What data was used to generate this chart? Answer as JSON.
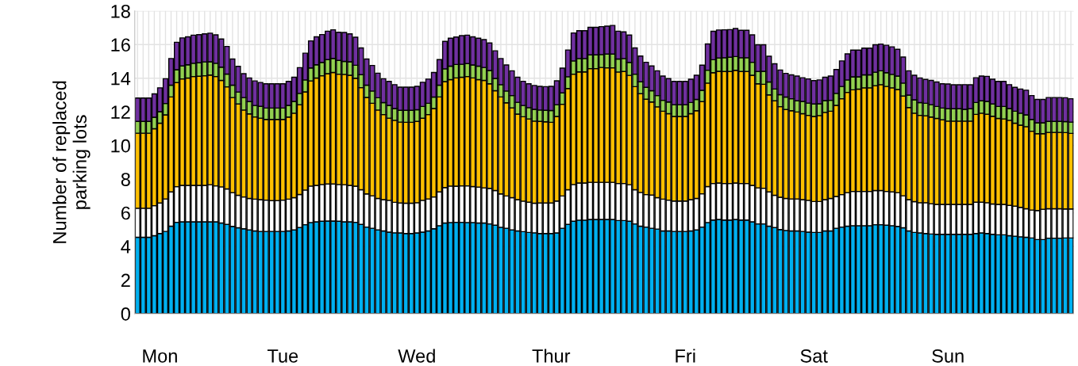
{
  "chart_data": {
    "type": "bar",
    "stacked": true,
    "ylabel": "Number of replaced\nparking lots",
    "categories": [
      null,
      null,
      null,
      null,
      "Mon",
      null,
      null,
      null,
      null,
      null,
      null,
      null,
      null,
      null,
      null,
      null,
      null,
      null,
      null,
      null,
      null,
      null,
      null,
      null,
      null,
      null,
      "Tue",
      null,
      null,
      null,
      null,
      null,
      null,
      null,
      null,
      null,
      null,
      null,
      null,
      null,
      null,
      null,
      null,
      null,
      null,
      null,
      null,
      null,
      null,
      null,
      "Wed",
      null,
      null,
      null,
      null,
      null,
      null,
      null,
      null,
      null,
      null,
      null,
      null,
      null,
      null,
      null,
      null,
      null,
      null,
      null,
      null,
      null,
      null,
      null,
      "Thur",
      null,
      null,
      null,
      null,
      null,
      null,
      null,
      null,
      null,
      null,
      null,
      null,
      null,
      null,
      null,
      null,
      null,
      null,
      null,
      null,
      null,
      null,
      null,
      "Fri",
      null,
      null,
      null,
      null,
      null,
      null,
      null,
      null,
      null,
      null,
      null,
      null,
      null,
      null,
      null,
      null,
      null,
      null,
      null,
      null,
      null,
      null,
      "Sat",
      null,
      null,
      null,
      null,
      null,
      null,
      null,
      null,
      null,
      null,
      null,
      null,
      null,
      null,
      null,
      null,
      null,
      null,
      null,
      null,
      null,
      null,
      null,
      "Sun",
      null,
      null,
      null,
      null,
      null,
      null,
      null,
      null,
      null,
      null,
      null,
      null,
      null,
      null,
      null,
      null,
      null,
      null,
      null,
      null,
      null,
      null
    ],
    "series": [
      {
        "color": "#00b0f0",
        "values": [
          4.54,
          4.54,
          4.54,
          4.64,
          4.77,
          4.89,
          5.2,
          5.43,
          5.46,
          5.46,
          5.46,
          5.46,
          5.46,
          5.46,
          5.46,
          5.39,
          5.31,
          5.19,
          5.11,
          5.05,
          4.98,
          4.92,
          4.89,
          4.89,
          4.89,
          4.89,
          4.89,
          4.92,
          4.98,
          5.12,
          5.29,
          5.42,
          5.46,
          5.5,
          5.51,
          5.51,
          5.5,
          5.46,
          5.46,
          5.43,
          5.31,
          5.15,
          5.08,
          4.98,
          4.92,
          4.85,
          4.81,
          4.8,
          4.77,
          4.77,
          4.8,
          4.85,
          4.92,
          5.05,
          5.23,
          5.39,
          5.42,
          5.43,
          5.43,
          5.42,
          5.42,
          5.39,
          5.39,
          5.34,
          5.26,
          5.14,
          5.08,
          4.98,
          4.92,
          4.88,
          4.83,
          4.81,
          4.77,
          4.77,
          4.77,
          4.8,
          5.08,
          5.31,
          5.5,
          5.56,
          5.56,
          5.6,
          5.6,
          5.6,
          5.6,
          5.6,
          5.54,
          5.54,
          5.5,
          5.34,
          5.2,
          5.15,
          5.08,
          5.03,
          4.92,
          4.92,
          4.89,
          4.89,
          4.89,
          4.92,
          4.98,
          5.15,
          5.42,
          5.57,
          5.6,
          5.57,
          5.57,
          5.6,
          5.57,
          5.57,
          5.46,
          5.34,
          5.34,
          5.2,
          5.12,
          5.0,
          4.95,
          4.92,
          4.92,
          4.89,
          4.85,
          4.83,
          4.83,
          4.92,
          4.92,
          5.08,
          5.15,
          5.2,
          5.23,
          5.23,
          5.23,
          5.23,
          5.29,
          5.29,
          5.26,
          5.23,
          5.19,
          5.11,
          4.92,
          4.83,
          4.8,
          4.77,
          4.74,
          4.72,
          4.72,
          4.72,
          4.72,
          4.72,
          4.72,
          4.72,
          4.77,
          4.8,
          4.77,
          4.72,
          4.69,
          4.69,
          4.64,
          4.61,
          4.57,
          4.54,
          4.5,
          4.41,
          4.41,
          4.49,
          4.49,
          4.49,
          4.5,
          4.5
        ]
      },
      {
        "color": "#ffffff",
        "values": [
          1.73,
          1.73,
          1.73,
          1.78,
          1.81,
          1.93,
          2.04,
          2.12,
          2.17,
          2.17,
          2.17,
          2.17,
          2.17,
          2.21,
          2.14,
          2.15,
          2.11,
          2.01,
          1.93,
          1.89,
          1.87,
          1.89,
          1.89,
          1.86,
          1.83,
          1.83,
          1.86,
          1.89,
          1.92,
          1.97,
          2.06,
          2.17,
          2.17,
          2.18,
          2.2,
          2.2,
          2.18,
          2.21,
          2.17,
          2.15,
          2.06,
          1.97,
          1.93,
          1.87,
          1.86,
          1.89,
          1.81,
          1.78,
          1.8,
          1.8,
          1.8,
          1.89,
          1.9,
          1.89,
          2.01,
          2.11,
          2.17,
          2.15,
          2.17,
          2.18,
          2.14,
          2.14,
          2.09,
          2.11,
          2.06,
          1.98,
          1.92,
          1.92,
          1.86,
          1.81,
          1.8,
          1.76,
          1.81,
          1.81,
          1.81,
          1.9,
          1.92,
          2.06,
          2.18,
          2.21,
          2.21,
          2.21,
          2.21,
          2.21,
          2.21,
          2.21,
          2.2,
          2.2,
          2.17,
          2.03,
          2.01,
          1.93,
          1.97,
          1.87,
          1.89,
          1.83,
          1.81,
          1.81,
          1.81,
          1.86,
          1.87,
          1.98,
          2.14,
          2.17,
          2.17,
          2.17,
          2.17,
          2.17,
          2.17,
          2.17,
          2.17,
          2.14,
          2.12,
          2.04,
          1.92,
          1.92,
          1.9,
          1.9,
          1.9,
          1.89,
          1.89,
          1.84,
          1.84,
          1.86,
          1.93,
          1.89,
          1.93,
          2.0,
          2.04,
          2.04,
          2.04,
          2.04,
          2.03,
          2.03,
          2.01,
          2.01,
          2.01,
          1.9,
          1.86,
          1.83,
          1.8,
          1.83,
          1.8,
          1.78,
          1.78,
          1.78,
          1.78,
          1.78,
          1.78,
          1.78,
          1.86,
          1.83,
          1.83,
          1.8,
          1.81,
          1.81,
          1.8,
          1.78,
          1.75,
          1.7,
          1.66,
          1.72,
          1.8,
          1.75,
          1.75,
          1.75,
          1.73,
          1.73
        ]
      },
      {
        "color": "#ffc000",
        "values": [
          4.46,
          4.46,
          4.46,
          4.58,
          4.75,
          5.0,
          5.65,
          6.19,
          6.33,
          6.38,
          6.47,
          6.49,
          6.52,
          6.52,
          6.5,
          6.33,
          6.07,
          5.65,
          5.43,
          5.17,
          5.03,
          4.89,
          4.85,
          4.8,
          4.83,
          4.83,
          4.8,
          4.88,
          5.02,
          5.34,
          5.84,
          6.25,
          6.38,
          6.47,
          6.56,
          6.63,
          6.56,
          6.56,
          6.55,
          6.42,
          6.07,
          5.74,
          5.5,
          5.26,
          5.06,
          4.89,
          4.88,
          4.81,
          4.81,
          4.81,
          4.83,
          4.88,
          5.02,
          5.26,
          5.65,
          6.3,
          6.33,
          6.44,
          6.46,
          6.5,
          6.46,
          6.39,
          6.39,
          6.22,
          5.94,
          5.77,
          5.54,
          5.34,
          5.09,
          5.02,
          4.95,
          4.88,
          4.85,
          4.83,
          4.8,
          5.03,
          5.45,
          6.02,
          6.56,
          6.61,
          6.61,
          6.76,
          6.76,
          6.83,
          6.81,
          6.81,
          6.63,
          6.66,
          6.5,
          6.13,
          5.87,
          5.67,
          5.54,
          5.4,
          5.23,
          5.14,
          5.03,
          5.03,
          5.03,
          5.11,
          5.22,
          5.48,
          6.15,
          6.59,
          6.64,
          6.66,
          6.66,
          6.7,
          6.66,
          6.66,
          6.55,
          6.19,
          6.18,
          5.77,
          5.62,
          5.39,
          5.29,
          5.25,
          5.17,
          5.11,
          5.05,
          5.06,
          5.11,
          5.19,
          5.19,
          5.42,
          5.7,
          5.96,
          6.04,
          6.08,
          6.16,
          6.16,
          6.24,
          6.3,
          6.24,
          6.19,
          6.13,
          5.93,
          5.48,
          5.26,
          5.19,
          5.17,
          5.15,
          5.11,
          5.03,
          4.95,
          4.95,
          4.95,
          4.95,
          4.95,
          5.22,
          5.29,
          5.26,
          5.22,
          5.11,
          5.08,
          5.06,
          4.94,
          4.89,
          4.88,
          4.69,
          4.57,
          4.49,
          4.54,
          4.54,
          4.54,
          4.54,
          4.49
        ]
      },
      {
        "color": "#92d050",
        "values": [
          0.7,
          0.7,
          0.7,
          0.68,
          0.68,
          0.68,
          0.7,
          0.77,
          0.77,
          0.79,
          0.79,
          0.8,
          0.82,
          0.79,
          0.79,
          0.79,
          0.76,
          0.74,
          0.71,
          0.74,
          0.73,
          0.68,
          0.7,
          0.68,
          0.68,
          0.68,
          0.68,
          0.7,
          0.7,
          0.67,
          0.71,
          0.77,
          0.79,
          0.79,
          0.84,
          0.84,
          0.82,
          0.77,
          0.8,
          0.77,
          0.77,
          0.73,
          0.73,
          0.73,
          0.71,
          0.76,
          0.7,
          0.7,
          0.71,
          0.71,
          0.7,
          0.7,
          0.67,
          0.68,
          0.7,
          0.76,
          0.8,
          0.8,
          0.77,
          0.77,
          0.77,
          0.8,
          0.77,
          0.79,
          0.73,
          0.73,
          0.7,
          0.73,
          0.7,
          0.67,
          0.67,
          0.7,
          0.68,
          0.68,
          0.7,
          0.7,
          0.68,
          0.7,
          0.79,
          0.79,
          0.79,
          0.82,
          0.82,
          0.77,
          0.82,
          0.82,
          0.77,
          0.77,
          0.77,
          0.74,
          0.71,
          0.71,
          0.67,
          0.67,
          0.65,
          0.7,
          0.7,
          0.7,
          0.7,
          0.67,
          0.67,
          0.67,
          0.77,
          0.77,
          0.8,
          0.82,
          0.85,
          0.82,
          0.82,
          0.82,
          0.77,
          0.73,
          0.77,
          0.77,
          0.7,
          0.71,
          0.74,
          0.71,
          0.67,
          0.73,
          0.73,
          0.74,
          0.7,
          0.7,
          0.65,
          0.71,
          0.73,
          0.74,
          0.77,
          0.73,
          0.77,
          0.77,
          0.8,
          0.82,
          0.82,
          0.8,
          0.8,
          0.77,
          0.74,
          0.8,
          0.76,
          0.74,
          0.74,
          0.71,
          0.7,
          0.74,
          0.74,
          0.74,
          0.7,
          0.74,
          0.71,
          0.74,
          0.76,
          0.73,
          0.71,
          0.74,
          0.7,
          0.71,
          0.71,
          0.7,
          0.7,
          0.65,
          0.65,
          0.65,
          0.65,
          0.65,
          0.65,
          0.67
        ]
      },
      {
        "color": "#7030a0",
        "values": [
          1.39,
          1.39,
          1.39,
          1.39,
          1.42,
          1.47,
          1.58,
          1.63,
          1.67,
          1.66,
          1.67,
          1.67,
          1.67,
          1.7,
          1.69,
          1.67,
          1.64,
          1.55,
          1.53,
          1.42,
          1.41,
          1.46,
          1.42,
          1.44,
          1.44,
          1.44,
          1.44,
          1.42,
          1.44,
          1.53,
          1.59,
          1.61,
          1.66,
          1.66,
          1.69,
          1.7,
          1.67,
          1.72,
          1.66,
          1.67,
          1.59,
          1.55,
          1.52,
          1.46,
          1.42,
          1.42,
          1.42,
          1.38,
          1.38,
          1.38,
          1.39,
          1.44,
          1.44,
          1.46,
          1.52,
          1.63,
          1.66,
          1.63,
          1.7,
          1.69,
          1.67,
          1.66,
          1.66,
          1.64,
          1.64,
          1.55,
          1.55,
          1.47,
          1.49,
          1.44,
          1.42,
          1.42,
          1.41,
          1.41,
          1.44,
          1.42,
          1.47,
          1.59,
          1.66,
          1.66,
          1.66,
          1.64,
          1.64,
          1.66,
          1.66,
          1.7,
          1.66,
          1.59,
          1.63,
          1.56,
          1.53,
          1.49,
          1.47,
          1.47,
          1.44,
          1.39,
          1.38,
          1.38,
          1.38,
          1.38,
          1.44,
          1.5,
          1.56,
          1.69,
          1.66,
          1.66,
          1.64,
          1.67,
          1.63,
          1.63,
          1.63,
          1.59,
          1.58,
          1.53,
          1.5,
          1.47,
          1.41,
          1.42,
          1.47,
          1.41,
          1.44,
          1.39,
          1.42,
          1.39,
          1.44,
          1.42,
          1.52,
          1.55,
          1.59,
          1.59,
          1.59,
          1.59,
          1.63,
          1.59,
          1.63,
          1.64,
          1.59,
          1.55,
          1.44,
          1.46,
          1.47,
          1.42,
          1.44,
          1.46,
          1.44,
          1.47,
          1.42,
          1.42,
          1.47,
          1.42,
          1.47,
          1.47,
          1.49,
          1.47,
          1.49,
          1.49,
          1.42,
          1.42,
          1.44,
          1.47,
          1.42,
          1.39,
          1.39,
          1.42,
          1.42,
          1.42,
          1.42,
          1.39
        ]
      }
    ],
    "ylim": [
      0,
      18
    ],
    "yticks": [
      0,
      2,
      4,
      6,
      8,
      10,
      12,
      14,
      16,
      18
    ],
    "grid": true
  }
}
